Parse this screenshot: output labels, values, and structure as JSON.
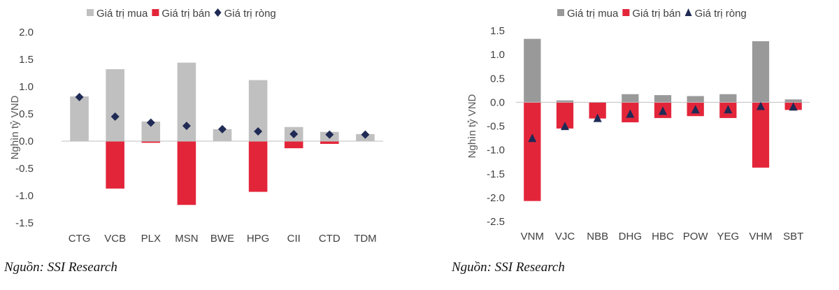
{
  "colors": {
    "buy": "#c0c0c0",
    "buy_right": "#999999",
    "sell": "#e3253a",
    "net": "#1f2a55",
    "axis": "#bfbfbf"
  },
  "chart_data": [
    {
      "type": "bar",
      "title": "",
      "ylabel": "Nghìn tỷ VND",
      "legend_position": "top",
      "net_marker": "diamond",
      "ylim": [
        -1.5,
        2.0
      ],
      "yticks": [
        "2.0",
        "1.5",
        "1.0",
        "0.5",
        "0.0",
        "-0.5",
        "-1.0",
        "-1.5"
      ],
      "categories": [
        "CTG",
        "VCB",
        "PLX",
        "MSN",
        "BWE",
        "HPG",
        "CII",
        "CTD",
        "TDM"
      ],
      "series": [
        {
          "name": "Giá trị mua",
          "values": [
            0.82,
            1.32,
            0.36,
            1.44,
            0.22,
            1.12,
            0.26,
            0.17,
            0.13
          ]
        },
        {
          "name": "Giá trị bán",
          "values": [
            0.0,
            -0.87,
            -0.03,
            -1.17,
            0.0,
            -0.93,
            -0.13,
            -0.05,
            0.0
          ]
        },
        {
          "name": "Giá trị ròng",
          "values": [
            0.81,
            0.45,
            0.34,
            0.28,
            0.22,
            0.18,
            0.13,
            0.12,
            0.12
          ]
        }
      ],
      "source": "Nguồn: SSI Research"
    },
    {
      "type": "bar",
      "title": "",
      "ylabel": "Nghìn tỷ VND",
      "legend_position": "top",
      "net_marker": "triangle",
      "ylim": [
        -2.5,
        1.5
      ],
      "yticks": [
        "1.5",
        "1.0",
        "0.5",
        "0.0",
        "-0.5",
        "-1.0",
        "-1.5",
        "-2.0",
        "-2.5"
      ],
      "categories": [
        "VNM",
        "VJC",
        "NBB",
        "DHG",
        "HBC",
        "POW",
        "YEG",
        "VHM",
        "SBT"
      ],
      "series": [
        {
          "name": "Giá trị mua",
          "values": [
            1.33,
            0.04,
            0.0,
            0.17,
            0.15,
            0.13,
            0.17,
            1.28,
            0.06
          ]
        },
        {
          "name": "Giá trị bán",
          "values": [
            -2.07,
            -0.55,
            -0.34,
            -0.42,
            -0.33,
            -0.29,
            -0.33,
            -1.37,
            -0.16
          ]
        },
        {
          "name": "Giá trị ròng",
          "values": [
            -0.76,
            -0.51,
            -0.34,
            -0.25,
            -0.19,
            -0.16,
            -0.16,
            -0.09,
            -0.1
          ]
        }
      ],
      "source": "Nguồn: SSI Research"
    }
  ]
}
